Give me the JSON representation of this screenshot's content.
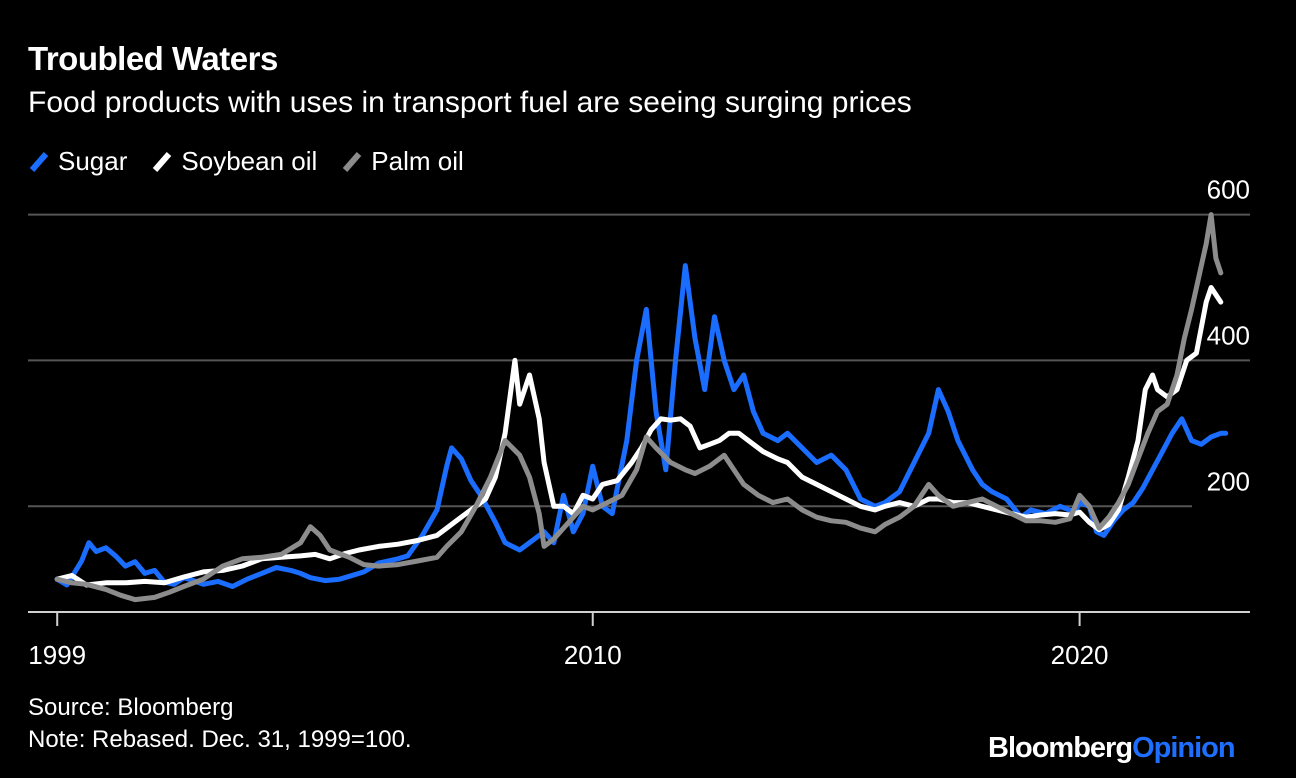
{
  "header": {
    "title": "Troubled Waters",
    "subtitle": "Food products with uses in transport fuel are seeing surging prices"
  },
  "footer": {
    "source": "Source: Bloomberg",
    "note": "Note: Rebased. Dec. 31, 1999=100.",
    "brand_part1": "Bloomberg",
    "brand_part2": "Opinion"
  },
  "colors": {
    "sugar": "#1a6dff",
    "soybean": "#ffffff",
    "palm": "#8c8c8c",
    "grid": "#555555",
    "brand_accent": "#1f6fff"
  },
  "chart_data": {
    "type": "line",
    "title": "Troubled Waters",
    "subtitle": "Food products with uses in transport fuel are seeing surging prices",
    "xlabel": "",
    "ylabel": "",
    "xlim": [
      1998.4,
      2023.5
    ],
    "ylim": [
      55,
      620
    ],
    "x_ticks": [
      1999,
      2010,
      2020
    ],
    "x_tick_labels": [
      "1999",
      "2010",
      "2020"
    ],
    "y_ticks": [
      200,
      400,
      600
    ],
    "y_tick_labels": [
      "200",
      "400",
      "600"
    ],
    "grid": true,
    "legend_position": "top-left",
    "series": [
      {
        "name": "Sugar",
        "color_key": "sugar",
        "points": [
          [
            1999.0,
            100
          ],
          [
            1999.2,
            92
          ],
          [
            1999.5,
            125
          ],
          [
            1999.65,
            150
          ],
          [
            1999.8,
            138
          ],
          [
            2000.0,
            143
          ],
          [
            2000.2,
            132
          ],
          [
            2000.4,
            118
          ],
          [
            2000.6,
            124
          ],
          [
            2000.8,
            108
          ],
          [
            2001.0,
            112
          ],
          [
            2001.2,
            96
          ],
          [
            2001.4,
            93
          ],
          [
            2001.6,
            102
          ],
          [
            2001.8,
            98
          ],
          [
            2002.0,
            93
          ],
          [
            2002.3,
            97
          ],
          [
            2002.6,
            90
          ],
          [
            2002.9,
            100
          ],
          [
            2003.2,
            108
          ],
          [
            2003.5,
            116
          ],
          [
            2003.8,
            112
          ],
          [
            2004.0,
            108
          ],
          [
            2004.2,
            102
          ],
          [
            2004.5,
            98
          ],
          [
            2004.8,
            100
          ],
          [
            2005.0,
            104
          ],
          [
            2005.3,
            110
          ],
          [
            2005.6,
            122
          ],
          [
            2006.0,
            128
          ],
          [
            2006.2,
            132
          ],
          [
            2006.5,
            160
          ],
          [
            2006.8,
            195
          ],
          [
            2007.0,
            255
          ],
          [
            2007.1,
            280
          ],
          [
            2007.3,
            265
          ],
          [
            2007.5,
            235
          ],
          [
            2007.7,
            215
          ],
          [
            2008.0,
            178
          ],
          [
            2008.2,
            150
          ],
          [
            2008.5,
            140
          ],
          [
            2008.8,
            155
          ],
          [
            2009.0,
            165
          ],
          [
            2009.2,
            150
          ],
          [
            2009.4,
            215
          ],
          [
            2009.6,
            165
          ],
          [
            2009.8,
            190
          ],
          [
            2010.0,
            255
          ],
          [
            2010.2,
            200
          ],
          [
            2010.4,
            190
          ],
          [
            2010.7,
            290
          ],
          [
            2010.9,
            400
          ],
          [
            2011.1,
            470
          ],
          [
            2011.3,
            330
          ],
          [
            2011.5,
            250
          ],
          [
            2011.7,
            400
          ],
          [
            2011.9,
            530
          ],
          [
            2012.1,
            430
          ],
          [
            2012.3,
            360
          ],
          [
            2012.5,
            460
          ],
          [
            2012.7,
            400
          ],
          [
            2012.9,
            360
          ],
          [
            2013.1,
            380
          ],
          [
            2013.3,
            330
          ],
          [
            2013.5,
            300
          ],
          [
            2013.8,
            290
          ],
          [
            2014.0,
            300
          ],
          [
            2014.3,
            280
          ],
          [
            2014.6,
            260
          ],
          [
            2014.9,
            270
          ],
          [
            2015.2,
            250
          ],
          [
            2015.5,
            210
          ],
          [
            2015.8,
            200
          ],
          [
            2016.0,
            205
          ],
          [
            2016.3,
            220
          ],
          [
            2016.6,
            260
          ],
          [
            2016.9,
            300
          ],
          [
            2017.1,
            360
          ],
          [
            2017.3,
            330
          ],
          [
            2017.5,
            290
          ],
          [
            2017.8,
            250
          ],
          [
            2018.0,
            230
          ],
          [
            2018.2,
            220
          ],
          [
            2018.5,
            210
          ],
          [
            2018.8,
            185
          ],
          [
            2019.0,
            195
          ],
          [
            2019.3,
            190
          ],
          [
            2019.6,
            200
          ],
          [
            2019.9,
            192
          ],
          [
            2020.0,
            205
          ],
          [
            2020.2,
            200
          ],
          [
            2020.35,
            165
          ],
          [
            2020.5,
            160
          ],
          [
            2020.7,
            180
          ],
          [
            2020.9,
            195
          ],
          [
            2021.1,
            205
          ],
          [
            2021.3,
            225
          ],
          [
            2021.5,
            250
          ],
          [
            2021.7,
            275
          ],
          [
            2021.9,
            300
          ],
          [
            2022.1,
            320
          ],
          [
            2022.3,
            290
          ],
          [
            2022.5,
            285
          ],
          [
            2022.7,
            295
          ],
          [
            2022.9,
            300
          ],
          [
            2023.0,
            300
          ]
        ]
      },
      {
        "name": "Soybean oil",
        "color_key": "soybean",
        "points": [
          [
            1999.0,
            100
          ],
          [
            1999.3,
            105
          ],
          [
            1999.6,
            92
          ],
          [
            2000.0,
            95
          ],
          [
            2000.4,
            95
          ],
          [
            2000.8,
            97
          ],
          [
            2001.2,
            95
          ],
          [
            2001.6,
            103
          ],
          [
            2002.0,
            110
          ],
          [
            2002.4,
            112
          ],
          [
            2002.8,
            118
          ],
          [
            2003.2,
            128
          ],
          [
            2003.6,
            130
          ],
          [
            2004.0,
            132
          ],
          [
            2004.3,
            134
          ],
          [
            2004.6,
            128
          ],
          [
            2004.9,
            135
          ],
          [
            2005.2,
            140
          ],
          [
            2005.6,
            145
          ],
          [
            2006.0,
            148
          ],
          [
            2006.4,
            153
          ],
          [
            2006.8,
            160
          ],
          [
            2007.0,
            170
          ],
          [
            2007.2,
            180
          ],
          [
            2007.5,
            195
          ],
          [
            2007.8,
            210
          ],
          [
            2008.0,
            240
          ],
          [
            2008.2,
            300
          ],
          [
            2008.4,
            400
          ],
          [
            2008.5,
            340
          ],
          [
            2008.7,
            380
          ],
          [
            2008.9,
            320
          ],
          [
            2009.0,
            260
          ],
          [
            2009.2,
            200
          ],
          [
            2009.4,
            200
          ],
          [
            2009.6,
            190
          ],
          [
            2009.8,
            215
          ],
          [
            2010.0,
            210
          ],
          [
            2010.2,
            230
          ],
          [
            2010.5,
            235
          ],
          [
            2010.8,
            260
          ],
          [
            2011.0,
            280
          ],
          [
            2011.2,
            305
          ],
          [
            2011.4,
            320
          ],
          [
            2011.6,
            318
          ],
          [
            2011.8,
            320
          ],
          [
            2012.0,
            310
          ],
          [
            2012.2,
            280
          ],
          [
            2012.4,
            285
          ],
          [
            2012.6,
            290
          ],
          [
            2012.8,
            300
          ],
          [
            2013.0,
            300
          ],
          [
            2013.2,
            290
          ],
          [
            2013.5,
            275
          ],
          [
            2013.8,
            265
          ],
          [
            2014.0,
            260
          ],
          [
            2014.3,
            240
          ],
          [
            2014.6,
            230
          ],
          [
            2014.9,
            220
          ],
          [
            2015.2,
            210
          ],
          [
            2015.5,
            200
          ],
          [
            2015.8,
            195
          ],
          [
            2016.0,
            200
          ],
          [
            2016.3,
            205
          ],
          [
            2016.6,
            200
          ],
          [
            2016.9,
            210
          ],
          [
            2017.1,
            210
          ],
          [
            2017.4,
            205
          ],
          [
            2017.7,
            205
          ],
          [
            2018.0,
            200
          ],
          [
            2018.3,
            195
          ],
          [
            2018.6,
            190
          ],
          [
            2018.9,
            185
          ],
          [
            2019.2,
            188
          ],
          [
            2019.5,
            190
          ],
          [
            2019.8,
            188
          ],
          [
            2020.0,
            192
          ],
          [
            2020.2,
            178
          ],
          [
            2020.4,
            168
          ],
          [
            2020.6,
            175
          ],
          [
            2020.8,
            195
          ],
          [
            2021.0,
            240
          ],
          [
            2021.2,
            290
          ],
          [
            2021.35,
            360
          ],
          [
            2021.5,
            380
          ],
          [
            2021.6,
            360
          ],
          [
            2021.8,
            350
          ],
          [
            2022.0,
            360
          ],
          [
            2022.2,
            400
          ],
          [
            2022.4,
            410
          ],
          [
            2022.6,
            480
          ],
          [
            2022.7,
            500
          ],
          [
            2022.8,
            490
          ],
          [
            2022.9,
            480
          ]
        ]
      },
      {
        "name": "Palm oil",
        "color_key": "palm",
        "points": [
          [
            1999.0,
            100
          ],
          [
            1999.3,
            95
          ],
          [
            1999.6,
            93
          ],
          [
            2000.0,
            86
          ],
          [
            2000.3,
            78
          ],
          [
            2000.6,
            72
          ],
          [
            2001.0,
            75
          ],
          [
            2001.3,
            82
          ],
          [
            2001.6,
            90
          ],
          [
            2002.0,
            100
          ],
          [
            2002.4,
            118
          ],
          [
            2002.8,
            128
          ],
          [
            2003.2,
            130
          ],
          [
            2003.6,
            134
          ],
          [
            2004.0,
            150
          ],
          [
            2004.2,
            172
          ],
          [
            2004.4,
            160
          ],
          [
            2004.6,
            140
          ],
          [
            2005.0,
            130
          ],
          [
            2005.3,
            120
          ],
          [
            2005.6,
            118
          ],
          [
            2006.0,
            120
          ],
          [
            2006.4,
            125
          ],
          [
            2006.8,
            130
          ],
          [
            2007.0,
            145
          ],
          [
            2007.3,
            165
          ],
          [
            2007.6,
            200
          ],
          [
            2007.9,
            240
          ],
          [
            2008.2,
            290
          ],
          [
            2008.5,
            270
          ],
          [
            2008.7,
            240
          ],
          [
            2008.9,
            190
          ],
          [
            2009.0,
            145
          ],
          [
            2009.2,
            155
          ],
          [
            2009.4,
            170
          ],
          [
            2009.6,
            185
          ],
          [
            2009.8,
            200
          ],
          [
            2010.0,
            195
          ],
          [
            2010.3,
            205
          ],
          [
            2010.6,
            215
          ],
          [
            2010.9,
            250
          ],
          [
            2011.1,
            295
          ],
          [
            2011.3,
            280
          ],
          [
            2011.6,
            260
          ],
          [
            2011.9,
            250
          ],
          [
            2012.1,
            245
          ],
          [
            2012.4,
            255
          ],
          [
            2012.7,
            270
          ],
          [
            2012.9,
            250
          ],
          [
            2013.1,
            230
          ],
          [
            2013.4,
            215
          ],
          [
            2013.7,
            205
          ],
          [
            2014.0,
            210
          ],
          [
            2014.3,
            195
          ],
          [
            2014.6,
            185
          ],
          [
            2014.9,
            180
          ],
          [
            2015.2,
            178
          ],
          [
            2015.5,
            170
          ],
          [
            2015.8,
            165
          ],
          [
            2016.0,
            175
          ],
          [
            2016.3,
            185
          ],
          [
            2016.6,
            200
          ],
          [
            2016.9,
            230
          ],
          [
            2017.1,
            215
          ],
          [
            2017.4,
            200
          ],
          [
            2017.7,
            205
          ],
          [
            2018.0,
            210
          ],
          [
            2018.3,
            200
          ],
          [
            2018.6,
            190
          ],
          [
            2018.9,
            180
          ],
          [
            2019.2,
            180
          ],
          [
            2019.5,
            178
          ],
          [
            2019.8,
            183
          ],
          [
            2020.0,
            215
          ],
          [
            2020.2,
            200
          ],
          [
            2020.4,
            170
          ],
          [
            2020.6,
            185
          ],
          [
            2020.8,
            205
          ],
          [
            2021.0,
            230
          ],
          [
            2021.2,
            265
          ],
          [
            2021.4,
            300
          ],
          [
            2021.6,
            330
          ],
          [
            2021.8,
            340
          ],
          [
            2022.0,
            380
          ],
          [
            2022.15,
            430
          ],
          [
            2022.3,
            470
          ],
          [
            2022.45,
            515
          ],
          [
            2022.6,
            560
          ],
          [
            2022.7,
            600
          ],
          [
            2022.8,
            540
          ],
          [
            2022.9,
            520
          ]
        ]
      }
    ]
  }
}
